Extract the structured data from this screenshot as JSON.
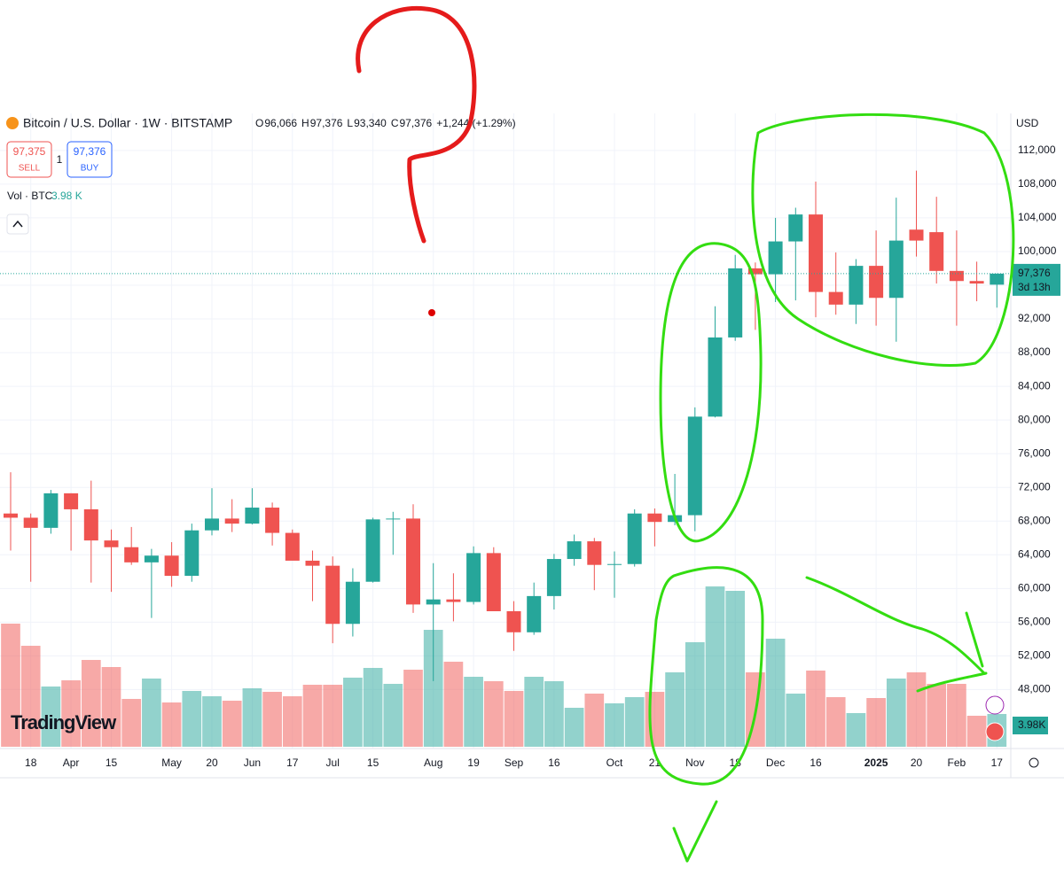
{
  "header": {
    "title": "Bitcoin / U.S. Dollar · 1W · BITSTAMP",
    "ohlc": [
      {
        "key": "O",
        "text": "96,066"
      },
      {
        "key": "H",
        "text": "97,376"
      },
      {
        "key": "L",
        "text": "93,340"
      },
      {
        "key": "C",
        "text": "97,376"
      }
    ],
    "change": "+1,244 (+1.29%)",
    "sell_price": "97,375",
    "sell": "SELL",
    "quantity": "1",
    "buy_price": "97,376",
    "buy": "BUY",
    "volume_indicator": "Vol · BTC",
    "volume_indicator_value": "3.98 K",
    "logo": "TradingView"
  },
  "chart_data": {
    "type": "candlestick",
    "currency": "USD",
    "categories": [
      null,
      "18",
      null,
      "Apr",
      null,
      "15",
      null,
      null,
      "May",
      null,
      "20",
      null,
      "Jun",
      null,
      "17",
      null,
      "Jul",
      null,
      "15",
      null,
      null,
      "Aug",
      null,
      "19",
      null,
      "Sep",
      null,
      "16",
      null,
      null,
      "Oct",
      null,
      "21",
      null,
      "Nov",
      null,
      "18",
      null,
      "Dec",
      null,
      "16",
      null,
      null,
      "2025",
      null,
      "20",
      null,
      "Feb",
      null,
      "17"
    ],
    "open": [
      68900,
      68400,
      67200,
      71300,
      69400,
      65700,
      64900,
      63100,
      63900,
      61500,
      66900,
      68300,
      67700,
      69600,
      66600,
      63300,
      62700,
      55800,
      60800,
      68200,
      68300,
      58100,
      58700,
      58400,
      64200,
      57300,
      54800,
      59100,
      63500,
      65600,
      62800,
      62900,
      68900,
      67900,
      68700,
      80400,
      89800,
      98000,
      97300,
      101200,
      104400,
      95200,
      93700,
      98300,
      94500,
      102600,
      102300,
      97700,
      96500,
      96066
    ],
    "high": [
      73800,
      68900,
      71700,
      71300,
      72800,
      67000,
      67300,
      64700,
      65500,
      67700,
      71900,
      70600,
      71900,
      70200,
      67000,
      64500,
      63800,
      62400,
      68400,
      69100,
      70000,
      63000,
      61800,
      65000,
      64900,
      58500,
      60700,
      64100,
      66400,
      66000,
      64400,
      69400,
      69500,
      73600,
      81500,
      93500,
      99600,
      98700,
      104000,
      105200,
      108300,
      99900,
      99100,
      102500,
      106400,
      109600,
      106500,
      102500,
      98800,
      97376
    ],
    "low": [
      64500,
      60800,
      66500,
      64500,
      60700,
      59600,
      62800,
      56500,
      60200,
      60800,
      66300,
      66700,
      67600,
      65100,
      63400,
      58500,
      53500,
      54300,
      60700,
      64000,
      57100,
      49000,
      56100,
      58100,
      57300,
      52600,
      54500,
      57500,
      62700,
      59800,
      58900,
      62600,
      65000,
      67500,
      66800,
      80300,
      89400,
      90700,
      94000,
      94200,
      92200,
      92500,
      91400,
      91200,
      89300,
      99400,
      96200,
      91200,
      94100,
      93340
    ],
    "close": [
      68400,
      67200,
      71300,
      69400,
      65700,
      64900,
      63100,
      63900,
      61500,
      66900,
      68300,
      67700,
      69600,
      66600,
      63300,
      62700,
      55800,
      60800,
      68200,
      68300,
      58100,
      58700,
      58400,
      64200,
      57300,
      54800,
      59100,
      63500,
      65600,
      62800,
      62900,
      68900,
      67900,
      68700,
      80400,
      89800,
      98000,
      97300,
      101200,
      104400,
      95200,
      93700,
      98300,
      94500,
      101300,
      101300,
      97700,
      96500,
      96200,
      97376
    ],
    "volume": [
      14956,
      12266,
      7317,
      8070,
      10545,
      9684,
      5810,
      8285,
      5380,
      6779,
      6133,
      5595,
      7102,
      6671,
      6133,
      7532,
      7532,
      8393,
      9576,
      7640,
      9361,
      14203,
      10330,
      8500,
      7962,
      6779,
      8500,
      7962,
      4734,
      6456,
      5272,
      6026,
      6671,
      9038,
      12697,
      19476,
      18938,
      9038,
      13127,
      6456,
      9254,
      6026,
      4089,
      5918,
      8285,
      9038,
      7640,
      7640,
      3766,
      3980
    ],
    "volume_label": "3.98K",
    "up_color": "#26a69a",
    "down_color": "#ef5350",
    "ylim": [
      41000,
      116400
    ],
    "yticks": [
      {
        "value": 48000,
        "label": "48,000"
      },
      {
        "value": 52000,
        "label": "52,000"
      },
      {
        "value": 56000,
        "label": "56,000"
      },
      {
        "value": 60000,
        "label": "60,000"
      },
      {
        "value": 64000,
        "label": "64,000"
      },
      {
        "value": 68000,
        "label": "68,000"
      },
      {
        "value": 72000,
        "label": "72,000"
      },
      {
        "value": 76000,
        "label": "76,000"
      },
      {
        "value": 80000,
        "label": "80,000"
      },
      {
        "value": 84000,
        "label": "84,000"
      },
      {
        "value": 88000,
        "label": "88,000"
      },
      {
        "value": 92000,
        "label": "92,000"
      },
      {
        "value": 96000,
        "label": "96,000"
      },
      {
        "value": 100000,
        "label": "100,000"
      },
      {
        "value": 104000,
        "label": "104,000"
      },
      {
        "value": 108000,
        "label": "108,000"
      },
      {
        "value": 112000,
        "label": "112,000"
      }
    ],
    "current_price": {
      "value": 97376,
      "label": "97,376"
    },
    "countdown": "3d 13h",
    "grid": true
  }
}
